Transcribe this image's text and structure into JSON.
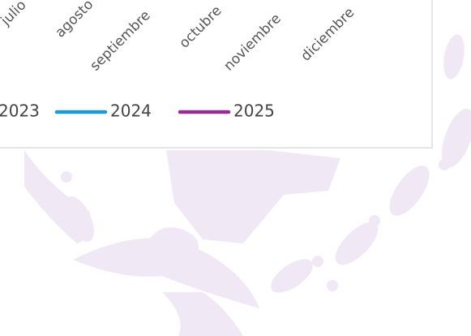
{
  "chart": {
    "months": [
      "julio",
      "agosto",
      "septiembre",
      "octubre",
      "noviembre",
      "diciembre"
    ],
    "legend": [
      {
        "name": "2023"
      },
      {
        "name": "2024",
        "color": "#1a9bd7"
      },
      {
        "name": "2025",
        "color": "#9b2a97"
      }
    ]
  }
}
